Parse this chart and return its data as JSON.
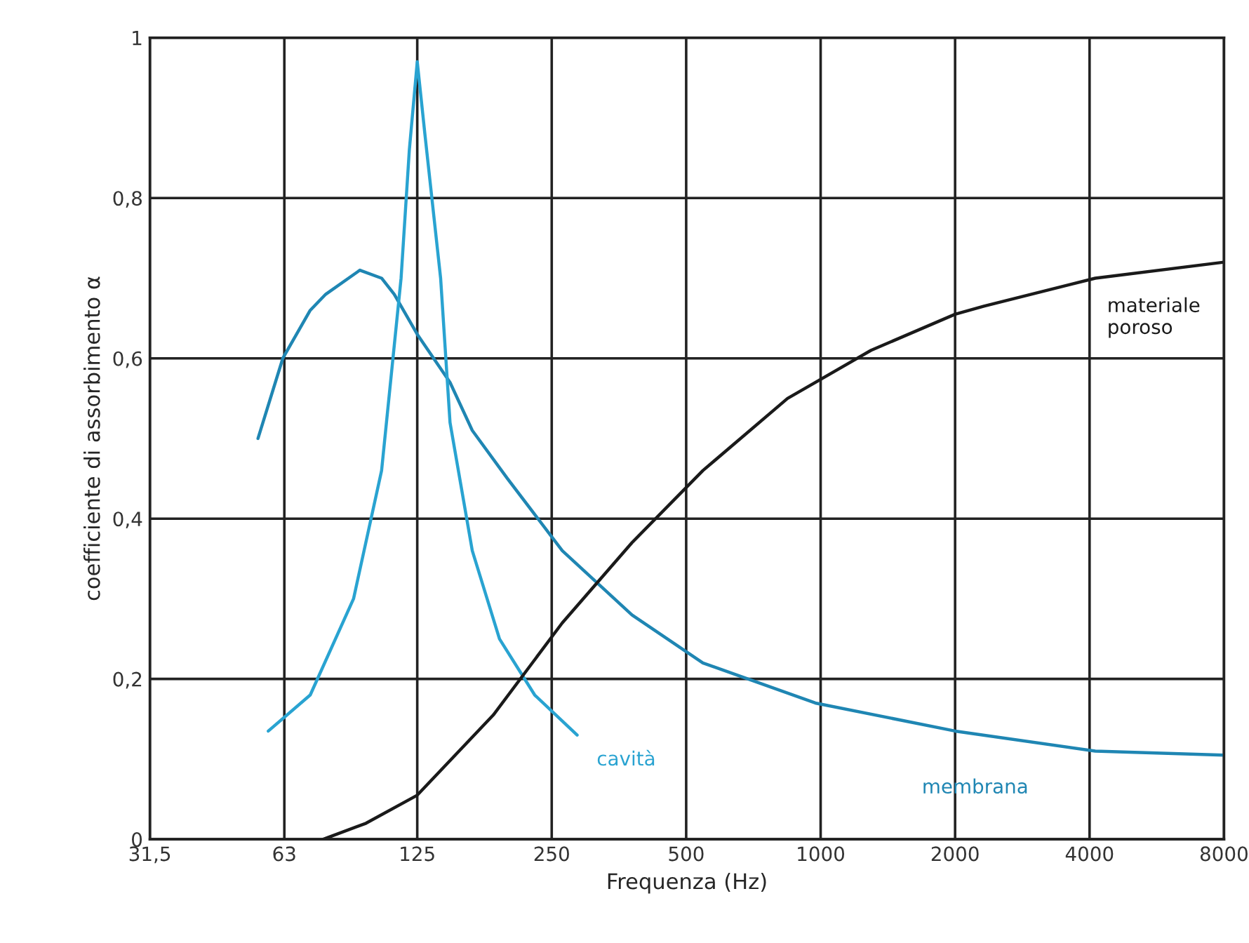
{
  "chart_data": {
    "type": "line",
    "xlabel": "Frequenza (Hz)",
    "ylabel": "coefficiente di assorbimento α",
    "log": "x",
    "grid": true,
    "line_style": "solid",
    "marker": "none",
    "xlim": [
      31.5,
      8000
    ],
    "xticks": [
      {
        "value": 31.5,
        "label": "31,5"
      },
      63,
      125,
      250,
      500,
      1000,
      2000,
      4000,
      8000
    ],
    "ylim": [
      0,
      1
    ],
    "yticks": [
      0,
      {
        "value": 0.2,
        "label": "0,2"
      },
      {
        "value": 0.4,
        "label": "0,4"
      },
      {
        "value": 0.6,
        "label": "0,6"
      },
      {
        "value": 0.8,
        "label": "0,8"
      },
      1
    ],
    "series": [
      {
        "name": "membrana",
        "color": "#1f86b3",
        "x": [
          55,
          62.5,
          72,
          78,
          93,
          104,
          111,
          125,
          148,
          166,
          199,
          264,
          378,
          545,
          973,
          2000,
          4120,
          8000
        ],
        "values": [
          0.5,
          0.6,
          0.66,
          0.68,
          0.71,
          0.7,
          0.68,
          0.63,
          0.57,
          0.51,
          0.45,
          0.36,
          0.28,
          0.22,
          0.17,
          0.135,
          0.11,
          0.105
        ]
      },
      {
        "name": "cavità",
        "color": "#29a3d1",
        "x": [
          58,
          72,
          90,
          104,
          115,
          120,
          125,
          130,
          141,
          148,
          166,
          191,
          229,
          285
        ],
        "values": [
          0.135,
          0.18,
          0.3,
          0.46,
          0.7,
          0.86,
          0.97,
          0.88,
          0.7,
          0.52,
          0.36,
          0.25,
          0.18,
          0.13
        ]
      },
      {
        "name": "materiale\nporoso",
        "color": "#1a1a1a",
        "x": [
          77,
          96,
          125,
          185,
          264,
          378,
          545,
          843,
          1297,
          2000,
          2320,
          4120,
          8000
        ],
        "values": [
          0.0,
          0.02,
          0.055,
          0.155,
          0.27,
          0.37,
          0.46,
          0.55,
          0.61,
          0.655,
          0.665,
          0.7,
          0.72
        ]
      }
    ]
  }
}
